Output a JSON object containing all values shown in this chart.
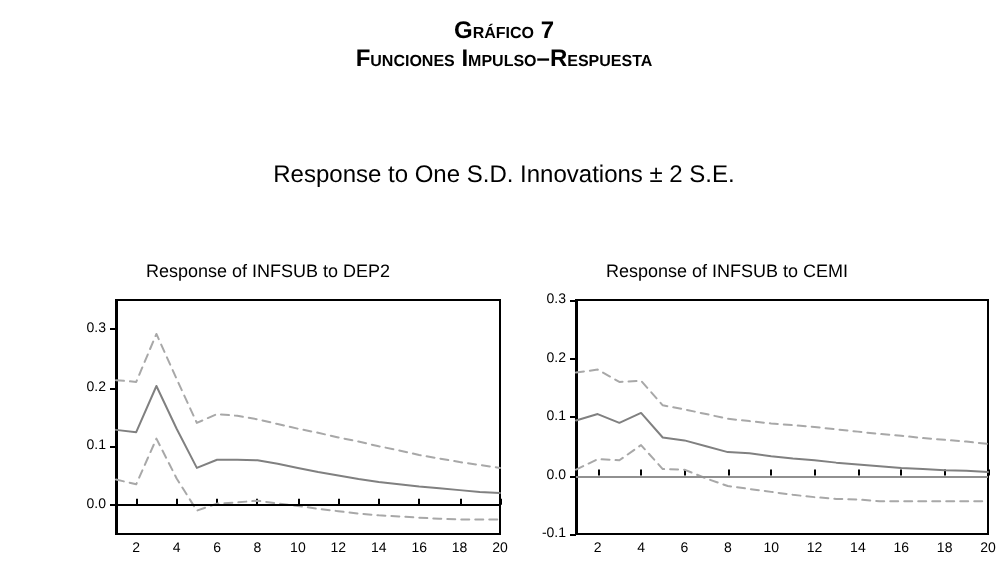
{
  "chart_data": [
    {
      "type": "line",
      "title": "Response of INFSUB to DEP2",
      "annotations": [
        "Gráfico 7",
        "Funciones Impulso–Respuesta",
        "Response to One S.D. Innovations ± 2 S.E."
      ],
      "x": [
        1,
        2,
        3,
        4,
        5,
        6,
        7,
        8,
        9,
        10,
        11,
        12,
        13,
        14,
        15,
        16,
        17,
        18,
        19,
        20
      ],
      "series": [
        {
          "color": "#808080",
          "line_style": "solid",
          "values": [
            0.128,
            0.124,
            0.203,
            0.13,
            0.063,
            0.077,
            0.077,
            0.076,
            0.07,
            0.063,
            0.056,
            0.05,
            0.044,
            0.039,
            0.035,
            0.031,
            0.028,
            0.025,
            0.022,
            0.02
          ]
        },
        {
          "color": "#a8a8a8",
          "line_style": "dashed",
          "values": [
            0.213,
            0.21,
            0.292,
            0.215,
            0.14,
            0.155,
            0.152,
            0.146,
            0.138,
            0.13,
            0.123,
            0.115,
            0.108,
            0.1,
            0.093,
            0.085,
            0.079,
            0.073,
            0.068,
            0.063
          ]
        },
        {
          "color": "#a8a8a8",
          "line_style": "dashed",
          "values": [
            0.043,
            0.035,
            0.113,
            0.045,
            -0.01,
            0.002,
            0.004,
            0.007,
            0.002,
            -0.002,
            -0.007,
            -0.011,
            -0.015,
            -0.018,
            -0.02,
            -0.022,
            -0.024,
            -0.025,
            -0.025,
            -0.025
          ]
        }
      ],
      "xlim": [
        1,
        20
      ],
      "xticks": [
        2,
        4,
        6,
        8,
        10,
        12,
        14,
        16,
        18,
        20
      ],
      "ylim": [
        -0.05,
        0.35
      ],
      "yticks": [
        {
          "value": 0,
          "label": "0.0"
        },
        {
          "value": 0.1,
          "label": "0.1"
        },
        {
          "value": 0.2,
          "label": "0.2"
        },
        {
          "value": 0.3,
          "label": "0.3"
        }
      ],
      "ref_lines": [
        {
          "axis": "y",
          "value": 0,
          "color": "#000000"
        }
      ],
      "marker": "none"
    },
    {
      "type": "line",
      "title": "Response of INFSUB to CEMI",
      "x": [
        1,
        2,
        3,
        4,
        5,
        6,
        7,
        8,
        9,
        10,
        11,
        12,
        13,
        14,
        15,
        16,
        17,
        18,
        19,
        20
      ],
      "series": [
        {
          "color": "#808080",
          "line_style": "solid",
          "values": [
            0.094,
            0.105,
            0.09,
            0.107,
            0.065,
            0.06,
            0.05,
            0.04,
            0.038,
            0.033,
            0.029,
            0.026,
            0.022,
            0.019,
            0.016,
            0.013,
            0.011,
            0.009,
            0.008,
            0.006
          ]
        },
        {
          "color": "#a8a8a8",
          "line_style": "dashed",
          "values": [
            0.176,
            0.181,
            0.16,
            0.162,
            0.12,
            0.113,
            0.105,
            0.097,
            0.093,
            0.089,
            0.086,
            0.083,
            0.079,
            0.075,
            0.071,
            0.068,
            0.064,
            0.061,
            0.058,
            0.054
          ]
        },
        {
          "color": "#a8a8a8",
          "line_style": "dashed",
          "values": [
            0.01,
            0.028,
            0.026,
            0.052,
            0.011,
            0.01,
            -0.005,
            -0.018,
            -0.023,
            -0.028,
            -0.033,
            -0.037,
            -0.04,
            -0.041,
            -0.044,
            -0.044,
            -0.044,
            -0.044,
            -0.044,
            -0.044
          ]
        }
      ],
      "xlim": [
        1,
        20
      ],
      "xticks": [
        2,
        4,
        6,
        8,
        10,
        12,
        14,
        16,
        18,
        20
      ],
      "ylim": [
        -0.1,
        0.3
      ],
      "yticks": [
        {
          "value": -0.1,
          "label": "-0.1"
        },
        {
          "value": 0,
          "label": "0.0"
        },
        {
          "value": 0.1,
          "label": "0.1"
        },
        {
          "value": 0.2,
          "label": "0.2"
        },
        {
          "value": 0.3,
          "label": "0.3"
        }
      ],
      "ref_lines": [
        {
          "axis": "y",
          "value": 0,
          "color": "#909090"
        }
      ],
      "marker": "none"
    }
  ]
}
